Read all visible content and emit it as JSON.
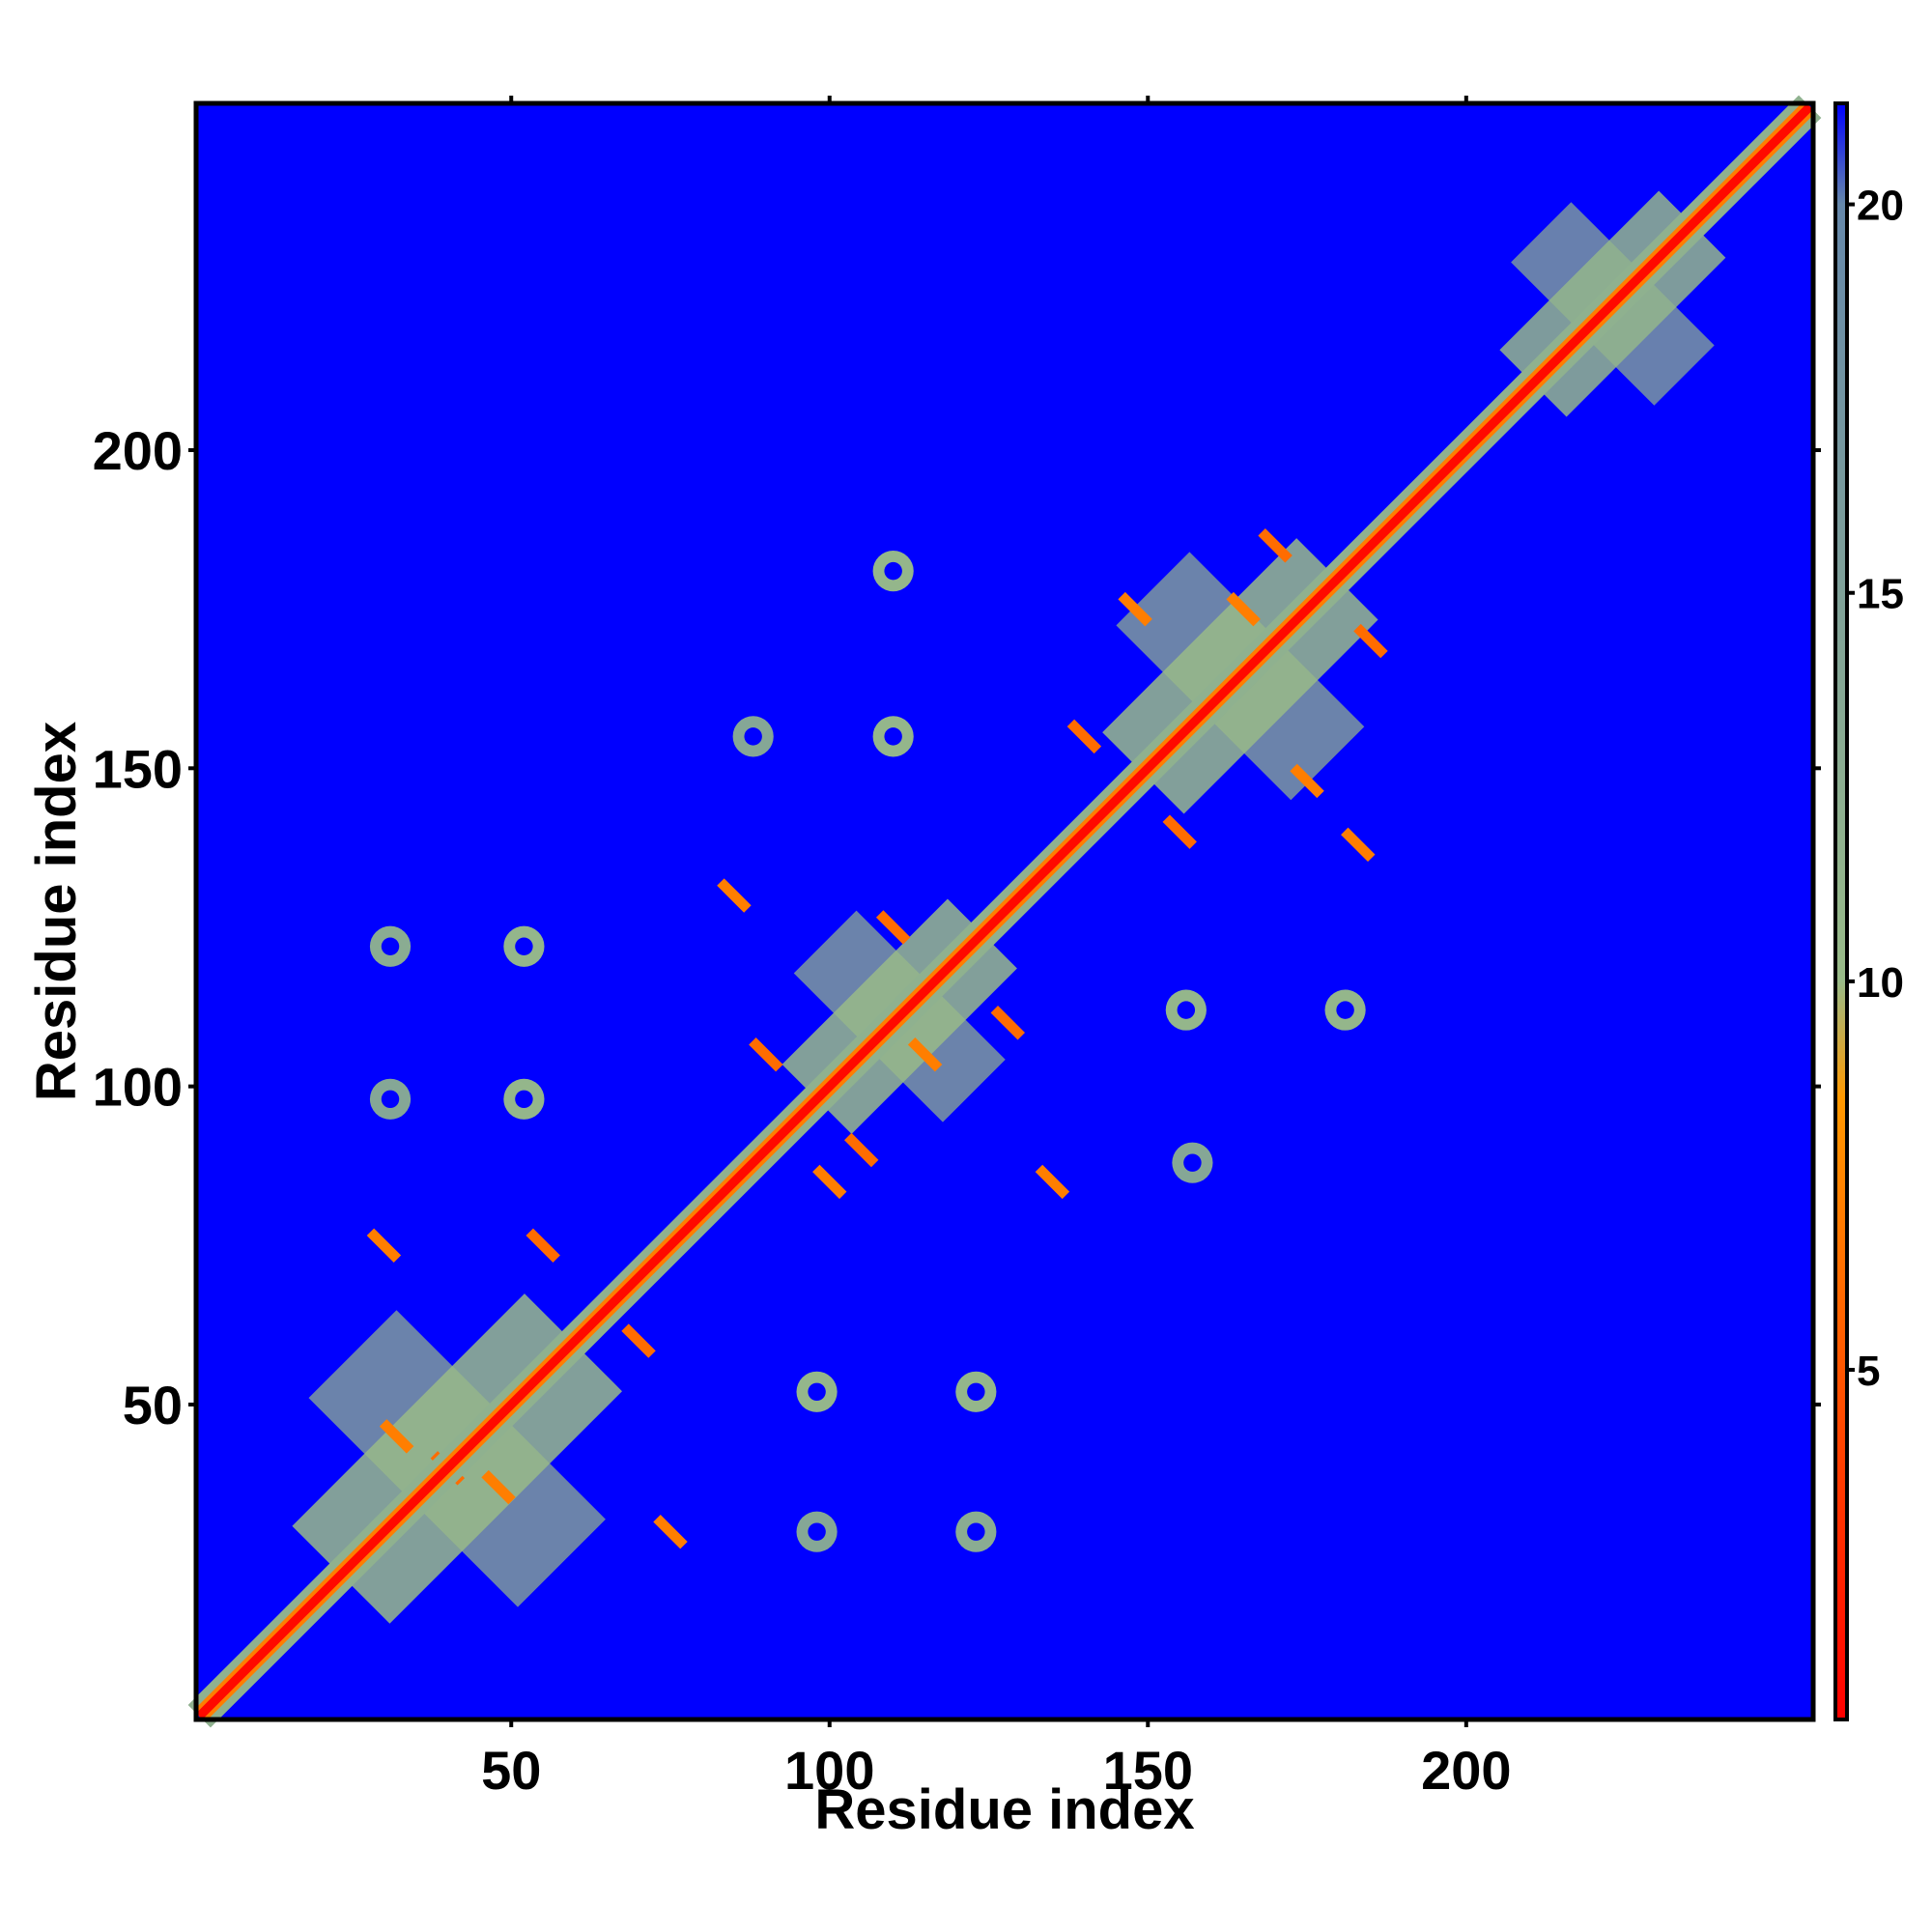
{
  "chart_data": {
    "type": "heatmap",
    "title": "",
    "xlabel": "Residue index",
    "ylabel": "Residue index",
    "xlim": [
      1,
      254
    ],
    "ylim": [
      1,
      254
    ],
    "x_ticks": [
      50,
      100,
      150,
      200
    ],
    "y_ticks": [
      50,
      100,
      150,
      200
    ],
    "colorbar": {
      "range": [
        0.5,
        21.3
      ],
      "ticks": [
        5,
        10,
        15,
        20
      ],
      "colors": [
        "#ff0000",
        "#ff9900",
        "#99bb88",
        "#6688aa",
        "#0000ff"
      ],
      "stops": [
        0,
        8.5,
        10,
        20,
        21.3
      ]
    },
    "diagonal": {
      "from": 1,
      "to": 254,
      "value": 0.5
    },
    "domains": [
      {
        "residues": [
          5,
          78
        ],
        "value": 10
      },
      {
        "residues": [
          85,
          137
        ],
        "value": 10
      },
      {
        "residues": [
          134,
          195
        ],
        "value": 10
      },
      {
        "residues": [
          198,
          248
        ],
        "value": 11
      }
    ],
    "helix_crossings": [
      {
        "x": 40,
        "y": 40,
        "value": 6
      },
      {
        "x": 32,
        "y": 45,
        "value": 7
      },
      {
        "x": 48,
        "y": 37,
        "value": 7
      },
      {
        "x": 55,
        "y": 75,
        "value": 6
      },
      {
        "x": 70,
        "y": 60,
        "value": 6
      },
      {
        "x": 30,
        "y": 75,
        "value": 7
      },
      {
        "x": 75,
        "y": 30,
        "value": 7
      },
      {
        "x": 105,
        "y": 90,
        "value": 6
      },
      {
        "x": 90,
        "y": 105,
        "value": 6
      },
      {
        "x": 110,
        "y": 125,
        "value": 6
      },
      {
        "x": 128,
        "y": 110,
        "value": 6
      },
      {
        "x": 115,
        "y": 105,
        "value": 7
      },
      {
        "x": 100,
        "y": 85,
        "value": 7
      },
      {
        "x": 85,
        "y": 130,
        "value": 7
      },
      {
        "x": 135,
        "y": 85,
        "value": 7
      },
      {
        "x": 155,
        "y": 140,
        "value": 6
      },
      {
        "x": 140,
        "y": 155,
        "value": 6
      },
      {
        "x": 170,
        "y": 185,
        "value": 6
      },
      {
        "x": 185,
        "y": 170,
        "value": 6
      },
      {
        "x": 165,
        "y": 175,
        "value": 7
      },
      {
        "x": 175,
        "y": 148,
        "value": 7
      },
      {
        "x": 148,
        "y": 175,
        "value": 7
      },
      {
        "x": 183,
        "y": 138,
        "value": 7
      }
    ],
    "off_diagonal_contacts": [
      {
        "x": 52,
        "y": 122,
        "value": 11
      },
      {
        "x": 52,
        "y": 98,
        "value": 11
      },
      {
        "x": 31,
        "y": 122,
        "value": 13
      },
      {
        "x": 31,
        "y": 98,
        "value": 14
      },
      {
        "x": 110,
        "y": 181,
        "value": 11
      },
      {
        "x": 110,
        "y": 155,
        "value": 11
      },
      {
        "x": 88,
        "y": 155,
        "value": 14
      },
      {
        "x": 156,
        "y": 112,
        "value": 11
      },
      {
        "x": 181,
        "y": 112,
        "value": 11
      },
      {
        "x": 157,
        "y": 88,
        "value": 14
      },
      {
        "x": 98,
        "y": 52,
        "value": 11
      },
      {
        "x": 123,
        "y": 52,
        "value": 11
      },
      {
        "x": 98,
        "y": 30,
        "value": 14
      },
      {
        "x": 123,
        "y": 30,
        "value": 13
      }
    ]
  }
}
